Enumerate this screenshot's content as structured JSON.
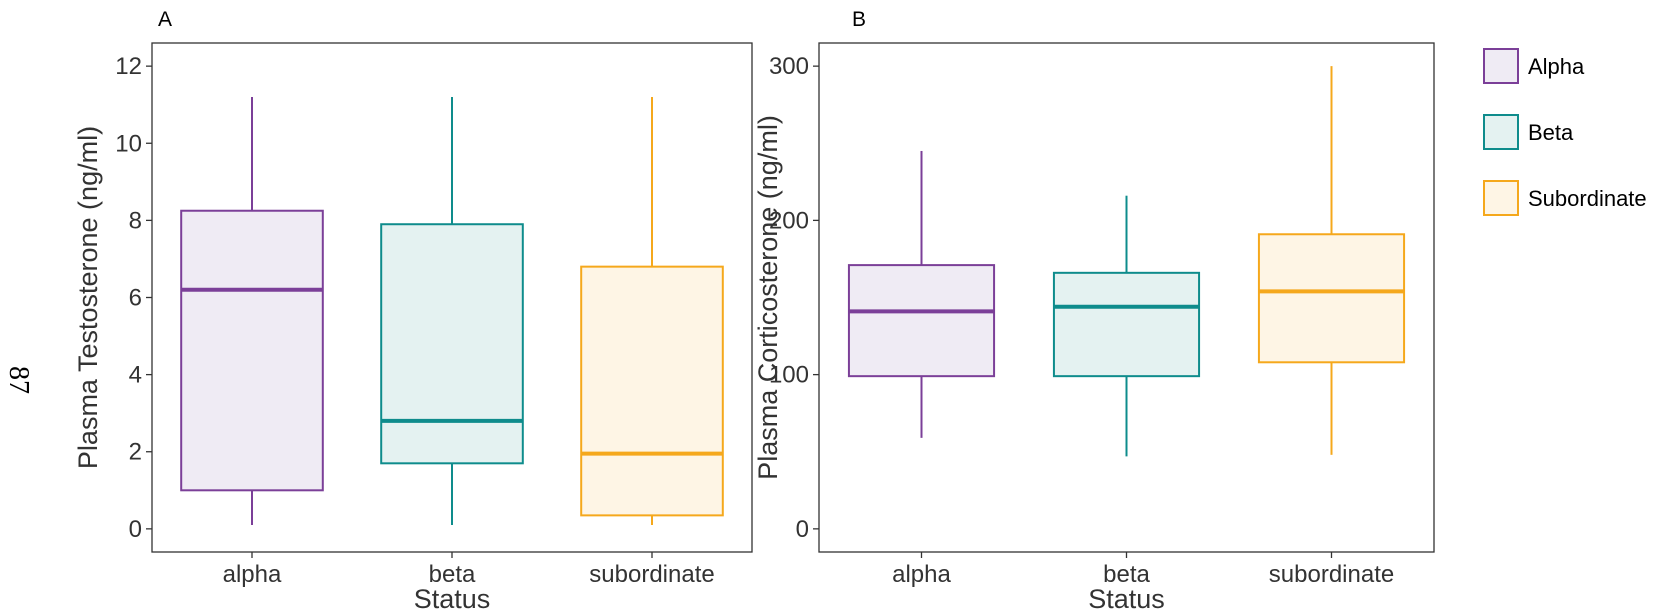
{
  "page_number": "87",
  "colors": {
    "Alpha": "#7b3f98",
    "Beta": "#0e8c8c",
    "Subordinate": "#f5a81c"
  },
  "fills": {
    "Alpha": "#efebf4",
    "Beta": "#e4f2f1",
    "Subordinate": "#fef5e5"
  },
  "legend": {
    "items": [
      {
        "key": "Alpha",
        "label": "Alpha"
      },
      {
        "key": "Beta",
        "label": "Beta"
      },
      {
        "key": "Subordinate",
        "label": "Subordinate"
      }
    ]
  },
  "chart_data": [
    {
      "type": "boxplot",
      "panel_label": "A",
      "xlabel": "Status",
      "ylabel": "Plasma Testosterone (ng/ml)",
      "ylim": [
        -0.6,
        12.6
      ],
      "yticks": [
        0,
        2,
        4,
        6,
        8,
        10,
        12
      ],
      "categories": [
        "alpha",
        "beta",
        "subordinate"
      ],
      "boxes": [
        {
          "category": "alpha",
          "group": "Alpha",
          "min": 0.1,
          "q1": 1.0,
          "median": 6.2,
          "q3": 8.25,
          "max": 11.2
        },
        {
          "category": "beta",
          "group": "Beta",
          "min": 0.1,
          "q1": 1.7,
          "median": 2.8,
          "q3": 7.9,
          "max": 11.2
        },
        {
          "category": "subordinate",
          "group": "Subordinate",
          "min": 0.1,
          "q1": 0.35,
          "median": 1.95,
          "q3": 6.8,
          "max": 11.2
        }
      ]
    },
    {
      "type": "boxplot",
      "panel_label": "B",
      "xlabel": "Status",
      "ylabel": "Plasma Corticosterone (ng/ml)",
      "ylim": [
        -15,
        315
      ],
      "yticks": [
        0,
        100,
        200,
        300
      ],
      "categories": [
        "alpha",
        "beta",
        "subordinate"
      ],
      "boxes": [
        {
          "category": "alpha",
          "group": "Alpha",
          "min": 59,
          "q1": 99,
          "median": 141,
          "q3": 171,
          "max": 245
        },
        {
          "category": "beta",
          "group": "Beta",
          "min": 47,
          "q1": 99,
          "median": 144,
          "q3": 166,
          "max": 216
        },
        {
          "category": "subordinate",
          "group": "Subordinate",
          "min": 48,
          "q1": 108,
          "median": 154,
          "q3": 191,
          "max": 300
        }
      ]
    }
  ]
}
